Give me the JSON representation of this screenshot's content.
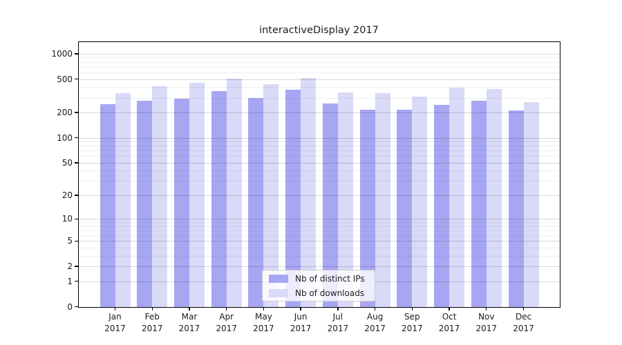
{
  "chart_data": {
    "type": "bar",
    "title": "interactiveDisplay 2017",
    "xlabel": "",
    "ylabel": "",
    "categories": [
      "Jan 2017",
      "Feb 2017",
      "Mar 2017",
      "Apr 2017",
      "May 2017",
      "Jun 2017",
      "Jul 2017",
      "Aug 2017",
      "Sep 2017",
      "Oct 2017",
      "Nov 2017",
      "Dec 2017"
    ],
    "series": [
      {
        "name": "Nb of distinct IPs",
        "color": "#a7a6f3",
        "values": [
          250,
          274,
          291,
          358,
          299,
          371,
          257,
          214,
          217,
          246,
          275,
          210
        ]
      },
      {
        "name": "Nb of downloads",
        "color": "#d9d9f8",
        "values": [
          341,
          411,
          451,
          501,
          438,
          519,
          345,
          341,
          312,
          392,
          383,
          267
        ]
      }
    ],
    "yscale": "log1p",
    "y_ticks": [
      0,
      1,
      2,
      5,
      10,
      20,
      50,
      100,
      200,
      500,
      1000
    ],
    "ylim": [
      0,
      1400
    ],
    "grid": true,
    "grid_minor": true,
    "legend_position": "lower center",
    "colors": {
      "grid_major": "rgba(0,0,0,0.16)",
      "grid_minor": "rgba(0,0,0,0.06)",
      "spine": "#000000",
      "text": "#1a1a1a"
    }
  }
}
